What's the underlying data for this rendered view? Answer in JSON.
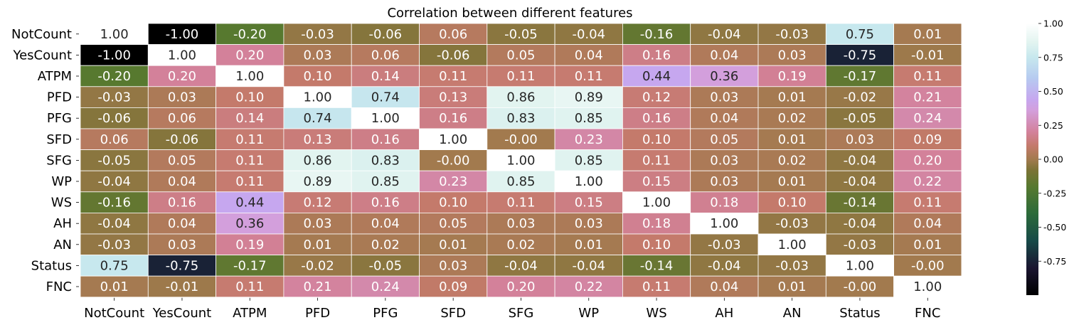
{
  "chart_data": {
    "type": "heatmap",
    "title": "Correlation between different features",
    "labels": [
      "NotCount",
      "YesCount",
      "ATPM",
      "PFD",
      "PFG",
      "SFD",
      "SFG",
      "WP",
      "WS",
      "AH",
      "AN",
      "Status",
      "FNC"
    ],
    "matrix": [
      [
        1.0,
        -1.0,
        -0.2,
        -0.03,
        -0.06,
        0.06,
        -0.05,
        -0.04,
        -0.16,
        -0.04,
        -0.03,
        0.75,
        0.01
      ],
      [
        -1.0,
        1.0,
        0.2,
        0.03,
        0.06,
        -0.06,
        0.05,
        0.04,
        0.16,
        0.04,
        0.03,
        -0.75,
        -0.01
      ],
      [
        -0.2,
        0.2,
        1.0,
        0.1,
        0.14,
        0.11,
        0.11,
        0.11,
        0.44,
        0.36,
        0.19,
        -0.17,
        0.11
      ],
      [
        -0.03,
        0.03,
        0.1,
        1.0,
        0.74,
        0.13,
        0.86,
        0.89,
        0.12,
        0.03,
        0.01,
        -0.02,
        0.21
      ],
      [
        -0.06,
        0.06,
        0.14,
        0.74,
        1.0,
        0.16,
        0.83,
        0.85,
        0.16,
        0.04,
        0.02,
        -0.05,
        0.24
      ],
      [
        0.06,
        -0.06,
        0.11,
        0.13,
        0.16,
        1.0,
        -0.0,
        0.23,
        0.1,
        0.05,
        0.01,
        0.03,
        0.09
      ],
      [
        -0.05,
        0.05,
        0.11,
        0.86,
        0.83,
        -0.0,
        1.0,
        0.85,
        0.11,
        0.03,
        0.02,
        -0.04,
        0.2
      ],
      [
        -0.04,
        0.04,
        0.11,
        0.89,
        0.85,
        0.23,
        0.85,
        1.0,
        0.15,
        0.03,
        0.01,
        -0.04,
        0.22
      ],
      [
        -0.16,
        0.16,
        0.44,
        0.12,
        0.16,
        0.1,
        0.11,
        0.15,
        1.0,
        0.18,
        0.1,
        -0.14,
        0.11
      ],
      [
        -0.04,
        0.04,
        0.36,
        0.03,
        0.04,
        0.05,
        0.03,
        0.03,
        0.18,
        1.0,
        -0.03,
        -0.04,
        0.04
      ],
      [
        -0.03,
        0.03,
        0.19,
        0.01,
        0.02,
        0.01,
        0.02,
        0.01,
        0.1,
        -0.03,
        1.0,
        -0.03,
        0.01
      ],
      [
        0.75,
        -0.75,
        -0.17,
        -0.02,
        -0.05,
        0.03,
        -0.04,
        -0.04,
        -0.14,
        -0.04,
        -0.03,
        1.0,
        -0.0
      ],
      [
        0.01,
        -0.01,
        0.11,
        0.21,
        0.24,
        0.09,
        0.2,
        0.22,
        0.11,
        0.04,
        0.01,
        -0.0,
        1.0
      ]
    ],
    "annotation_format": "2 decimals",
    "colorbar": {
      "range": [
        -1.0,
        1.0
      ],
      "ticks": [
        "1.00",
        "0.75",
        "0.50",
        "0.25",
        "0.00",
        "-0.25",
        "-0.50",
        "-0.75"
      ],
      "tick_values": [
        1.0,
        0.75,
        0.5,
        0.25,
        0.0,
        -0.25,
        -0.5,
        -0.75
      ],
      "colormap": "cubehelix",
      "stops": [
        {
          "v": -1.0,
          "color": "#000000"
        },
        {
          "v": -0.8,
          "color": "#1a1530"
        },
        {
          "v": -0.6,
          "color": "#174a48"
        },
        {
          "v": -0.4,
          "color": "#2c6b3a"
        },
        {
          "v": -0.2,
          "color": "#57792f"
        },
        {
          "v": -0.08,
          "color": "#7b7336"
        },
        {
          "v": 0.0,
          "color": "#a27a4e"
        },
        {
          "v": 0.1,
          "color": "#c47a6b"
        },
        {
          "v": 0.2,
          "color": "#d3819a"
        },
        {
          "v": 0.36,
          "color": "#d39fdc"
        },
        {
          "v": 0.44,
          "color": "#c6a7ef"
        },
        {
          "v": 0.6,
          "color": "#b6cbf0"
        },
        {
          "v": 0.75,
          "color": "#c7e8ee"
        },
        {
          "v": 0.86,
          "color": "#e2f4f0"
        },
        {
          "v": 1.0,
          "color": "#ffffff"
        }
      ]
    },
    "grid": true
  }
}
